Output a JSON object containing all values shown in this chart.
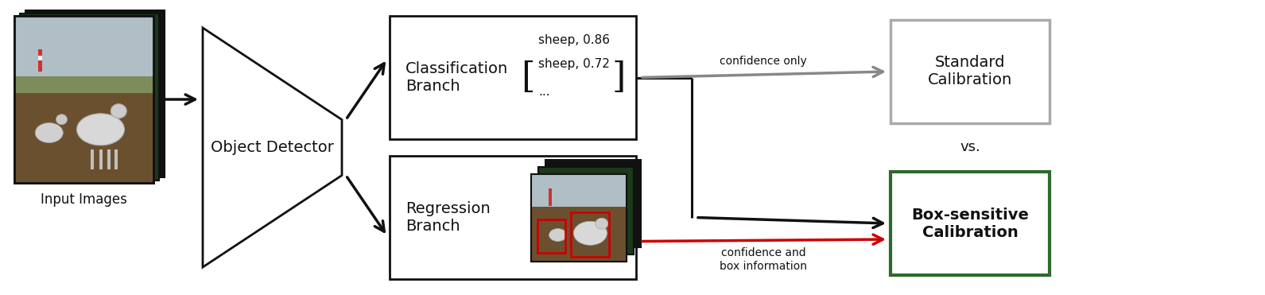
{
  "fig_width": 15.91,
  "fig_height": 3.71,
  "dpi": 100,
  "bg_color": "#ffffff",
  "input_label": "Input Images",
  "obj_detector_label": "Object Detector",
  "class_branch_label": "Classification\nBranch",
  "reg_branch_label": "Regression\nBranch",
  "confidence_only_label": "confidence only",
  "confidence_box_label": "confidence and\nbox information",
  "vs_label": "vs.",
  "standard_cal_label": "Standard\nCalibration",
  "box_sensitive_label": "Box-sensitive\nCalibration",
  "matrix_line1": "sheep, 0.86",
  "matrix_line2": "sheep, 0.72",
  "matrix_line3": "...",
  "standard_box_color": "#aaaaaa",
  "box_sensitive_box_color": "#2d6a2d",
  "arrow_color_gray": "#888888",
  "arrow_color_black": "#111111",
  "arrow_color_red": "#cc0000",
  "font_size_branch": 14,
  "font_size_cal": 14,
  "font_size_vs": 13,
  "font_size_input": 12,
  "font_size_matrix": 11,
  "font_size_label": 10,
  "font_size_detector": 14
}
